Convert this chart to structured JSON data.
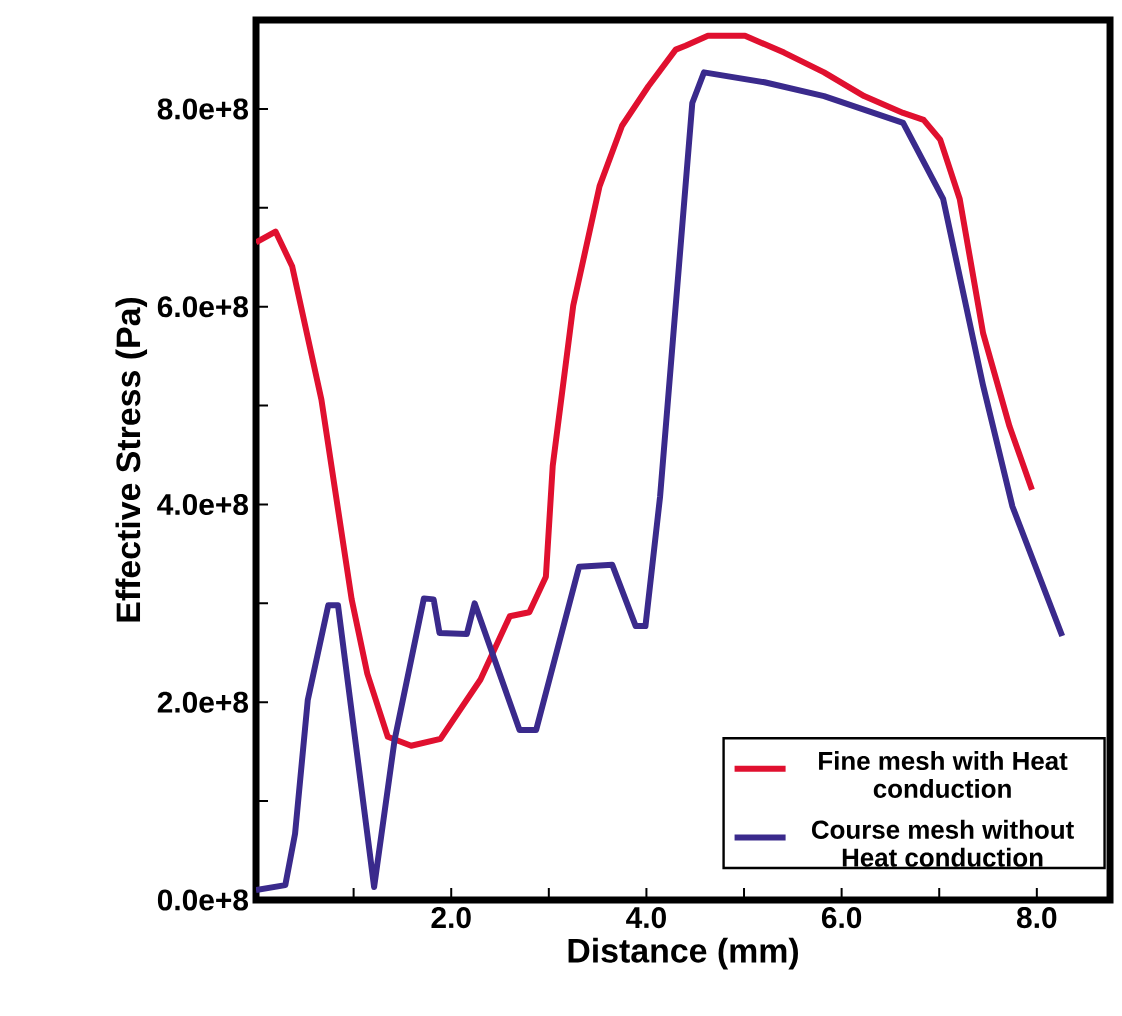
{
  "chart_data": {
    "type": "line",
    "xlabel": "Distance (mm)",
    "ylabel": "Effective Stress (Pa)",
    "xlim": [
      0,
      8.75
    ],
    "ylim": [
      0,
      890000000
    ],
    "xticks": [
      {
        "value": 1,
        "label": null
      },
      {
        "value": 2,
        "label": "2.0"
      },
      {
        "value": 3,
        "label": null
      },
      {
        "value": 4,
        "label": "4.0"
      },
      {
        "value": 5,
        "label": null
      },
      {
        "value": 6,
        "label": "6.0"
      },
      {
        "value": 7,
        "label": null
      },
      {
        "value": 8,
        "label": "8.0"
      }
    ],
    "yticks": [
      {
        "value": 0,
        "label": "0.0e+8"
      },
      {
        "value": 100000000,
        "label": null
      },
      {
        "value": 200000000,
        "label": "2.0e+8"
      },
      {
        "value": 300000000,
        "label": null
      },
      {
        "value": 400000000,
        "label": "4.0e+8"
      },
      {
        "value": 500000000,
        "label": null
      },
      {
        "value": 600000000,
        "label": "6.0e+8"
      },
      {
        "value": 700000000,
        "label": null
      },
      {
        "value": 800000000,
        "label": "8.0e+8"
      }
    ],
    "grid": false,
    "legend": "bottom right",
    "marker": "none",
    "line_style": "solid",
    "series": [
      {
        "name": "Fine mesh with Heat conduction",
        "color": "#e0102f",
        "x": [
          0,
          0.2,
          0.37,
          0.67,
          0.98,
          1.14,
          1.35,
          1.59,
          1.89,
          2.3,
          2.6,
          2.8,
          2.97,
          3.04,
          3.25,
          3.52,
          3.75,
          4.02,
          4.3,
          4.4,
          4.63,
          5.01,
          5.41,
          5.82,
          6.23,
          6.63,
          6.84,
          7.01,
          7.21,
          7.45,
          7.72,
          7.95
        ],
        "values": [
          665000000,
          676000000,
          641000000,
          506000000,
          304000000,
          229000000,
          165000000,
          156000000,
          163000000,
          223000000,
          287000000,
          291000000,
          327000000,
          439000000,
          601000000,
          722000000,
          783000000,
          823000000,
          860000000,
          864000000,
          874000000,
          874000000,
          857000000,
          837000000,
          813000000,
          796000000,
          789000000,
          769000000,
          709000000,
          573000000,
          479000000,
          415000000
        ]
      },
      {
        "name": "Course mesh without Heat conduction",
        "color": "#3a2a8c",
        "x": [
          0,
          0.3,
          0.4,
          0.53,
          0.74,
          0.84,
          1.21,
          1.42,
          1.72,
          1.82,
          1.88,
          2.16,
          2.24,
          2.7,
          2.87,
          3.31,
          3.65,
          3.89,
          3.99,
          4.14,
          4.47,
          4.59,
          5.21,
          5.82,
          6.63,
          7.04,
          7.45,
          7.75,
          8.26
        ],
        "values": [
          10000000,
          15000000,
          67000000,
          202000000,
          298000000,
          298000000,
          13000000,
          162000000,
          305000000,
          304000000,
          270000000,
          269000000,
          300000000,
          172000000,
          172000000,
          337000000,
          339000000,
          277000000,
          277000000,
          408000000,
          806000000,
          837000000,
          827000000,
          813000000,
          786000000,
          709000000,
          520000000,
          398000000,
          267000000
        ]
      }
    ]
  }
}
